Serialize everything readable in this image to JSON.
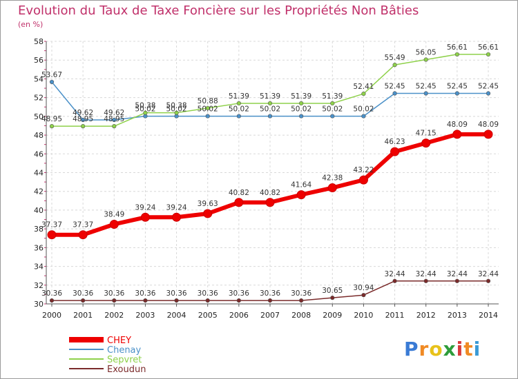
{
  "header": {
    "title": "Evolution du Taux de Taxe Foncière sur les Propriétés Non Bâties",
    "subtitle": "(en %)"
  },
  "logo": {
    "letters": [
      "P",
      "r",
      "o",
      "x",
      "i",
      "t",
      "i"
    ],
    "colors": [
      "#3a7bd5",
      "#f08a24",
      "#e8c21a",
      "#2d9c3a",
      "#d83a3a",
      "#f08a24",
      "#3a9ad5"
    ]
  },
  "chart_data": {
    "type": "line",
    "title": "Evolution du Taux de Taxe Foncière sur les Propriétés Non Bâties",
    "ylabel": "(en %)",
    "xlabel": "",
    "ylim": [
      30,
      58
    ],
    "yticks": [
      30,
      32,
      34,
      36,
      38,
      40,
      42,
      44,
      46,
      48,
      50,
      52,
      54,
      56,
      58
    ],
    "x": [
      "2000",
      "2001",
      "2002",
      "2003",
      "2004",
      "2005",
      "2006",
      "2007",
      "2008",
      "2009",
      "2010",
      "2011",
      "2012",
      "2013",
      "2014"
    ],
    "grid": true,
    "legend_position": "bottom-left",
    "series": [
      {
        "name": "CHEY",
        "color": "#ee0000",
        "width": 6,
        "values": [
          37.37,
          37.37,
          38.49,
          39.24,
          39.24,
          39.63,
          40.82,
          40.82,
          41.64,
          42.38,
          43.22,
          46.23,
          47.15,
          48.09,
          48.09
        ],
        "labels": [
          "37.37",
          "37.37",
          "38.49",
          "39.24",
          "39.24",
          "39.63",
          "40.82",
          "40.82",
          "41.64",
          "42.38",
          "43.22",
          "46.23",
          "47.15",
          "48.09",
          "48.09"
        ]
      },
      {
        "name": "Chenay",
        "color": "#4a90c8",
        "width": 1.5,
        "values": [
          53.67,
          49.62,
          49.62,
          50.02,
          50.02,
          50.02,
          50.02,
          50.02,
          50.02,
          50.02,
          50.02,
          52.45,
          52.45,
          52.45,
          52.45
        ],
        "labels": [
          "53.67",
          "49.62",
          "49.62",
          "50.02",
          "50.02",
          "50.02",
          "50.02",
          "50.02",
          "50.02",
          "50.02",
          "50.02",
          "52.45",
          "52.45",
          "52.45",
          "52.45"
        ]
      },
      {
        "name": "Sepvret",
        "color": "#8ed14a",
        "width": 1.5,
        "values": [
          48.95,
          48.95,
          48.95,
          50.38,
          50.38,
          50.88,
          51.39,
          51.39,
          51.39,
          51.39,
          52.41,
          55.49,
          56.05,
          56.61,
          56.61
        ],
        "labels": [
          "48.95",
          "48.95",
          "48.95",
          "50.38",
          "50.38",
          "50.88",
          "51.39",
          "51.39",
          "51.39",
          "51.39",
          "52.41",
          "55.49",
          "56.05",
          "56.61",
          "56.61"
        ]
      },
      {
        "name": "Exoudun",
        "color": "#7a2a2a",
        "width": 1.5,
        "values": [
          30.36,
          30.36,
          30.36,
          30.36,
          30.36,
          30.36,
          30.36,
          30.36,
          30.36,
          30.65,
          30.94,
          32.44,
          32.44,
          32.44,
          32.44
        ],
        "labels": [
          "30.36",
          "30.36",
          "30.36",
          "30.36",
          "30.36",
          "30.36",
          "30.36",
          "30.36",
          "30.36",
          "30.65",
          "30.94",
          "32.44",
          "32.44",
          "32.44",
          "32.44"
        ]
      }
    ]
  }
}
